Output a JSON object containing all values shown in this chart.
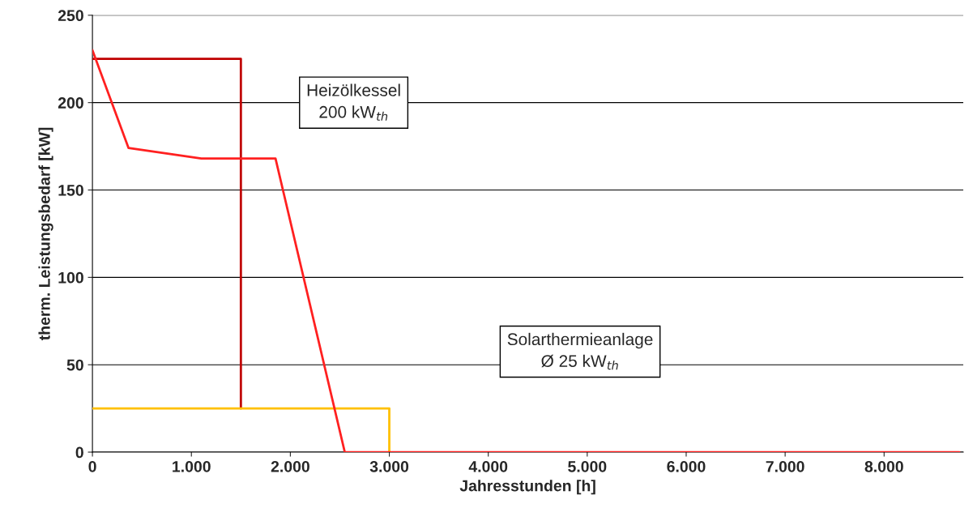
{
  "chart_data": {
    "type": "line",
    "xlabel": "Jahresstunden [h]",
    "ylabel": "therm. Leistungsbedarf [kW]",
    "series": [
      {
        "x": [
          0,
          1500,
          1500
        ],
        "values": [
          225,
          225,
          25
        ],
        "color": "#c00000"
      },
      {
        "x": [
          0,
          3000,
          3000
        ],
        "values": [
          25,
          25,
          0
        ],
        "color": "#ffc000"
      },
      {
        "x": [
          0,
          365,
          1100,
          1850,
          2550,
          8760
        ],
        "values": [
          230,
          174,
          168,
          168,
          0,
          0
        ],
        "color": "#ff2020"
      }
    ],
    "annotations": [
      "Heizölkessel\n200 kW$_{th}$",
      "Solarthermieanlage\nØ 25 kW$_{th}$"
    ],
    "xlim": [
      0,
      8800
    ],
    "ylim": [
      0,
      250
    ],
    "xticks": [
      0,
      {
        "value": 1000,
        "label": "1.000"
      },
      {
        "value": 2000,
        "label": "2.000"
      },
      {
        "value": 3000,
        "label": "3.000"
      },
      {
        "value": 4000,
        "label": "4.000"
      },
      {
        "value": 5000,
        "label": "5.000"
      },
      {
        "value": 6000,
        "label": "6.000"
      },
      {
        "value": 7000,
        "label": "7.000"
      },
      {
        "value": 8000,
        "label": "8.000"
      }
    ],
    "yticks": [
      0,
      50,
      100,
      150,
      200,
      250
    ],
    "grid": "y",
    "legend": false
  }
}
